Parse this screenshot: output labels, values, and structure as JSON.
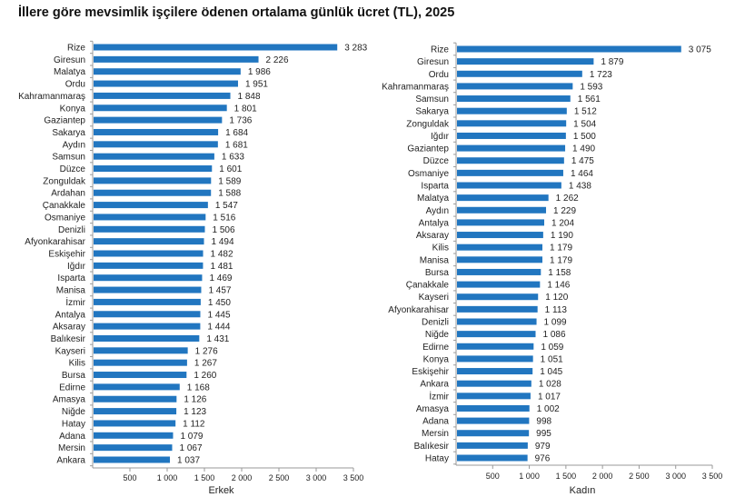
{
  "title": "İllere göre mevsimlik işçilere ödenen ortalama günlük ücret (TL), 2025",
  "chart_data": [
    {
      "type": "bar",
      "orientation": "horizontal",
      "xlabel": "Erkek",
      "xlim": [
        0,
        3500
      ],
      "xticks": [
        500,
        1000,
        1500,
        2000,
        2500,
        3000,
        3500
      ],
      "xtick_labels": [
        "500",
        "1 000",
        "1 500",
        "2 000",
        "2 500",
        "3 000",
        "3 500"
      ],
      "bar_color": "#2176c0",
      "grid": false,
      "categories": [
        "Rize",
        "Giresun",
        "Malatya",
        "Ordu",
        "Kahramanmaraş",
        "Konya",
        "Gaziantep",
        "Sakarya",
        "Aydın",
        "Samsun",
        "Düzce",
        "Zonguldak",
        "Ardahan",
        "Çanakkale",
        "Osmaniye",
        "Denizli",
        "Afyonkarahisar",
        "Eskişehir",
        "Iğdır",
        "Isparta",
        "Manisa",
        "İzmir",
        "Antalya",
        "Aksaray",
        "Balıkesir",
        "Kayseri",
        "Kilis",
        "Bursa",
        "Edirne",
        "Amasya",
        "Niğde",
        "Hatay",
        "Adana",
        "Mersin",
        "Ankara"
      ],
      "values": [
        3283,
        2226,
        1986,
        1951,
        1848,
        1801,
        1736,
        1684,
        1681,
        1633,
        1601,
        1589,
        1588,
        1547,
        1516,
        1506,
        1494,
        1482,
        1481,
        1469,
        1457,
        1450,
        1445,
        1444,
        1431,
        1276,
        1267,
        1260,
        1168,
        1126,
        1123,
        1112,
        1079,
        1067,
        1037
      ],
      "value_labels": [
        "3 283",
        "2 226",
        "1 986",
        "1 951",
        "1 848",
        "1 801",
        "1 736",
        "1 684",
        "1 681",
        "1 633",
        "1 601",
        "1 589",
        "1 588",
        "1 547",
        "1 516",
        "1 506",
        "1 494",
        "1 482",
        "1 481",
        "1 469",
        "1 457",
        "1 450",
        "1 445",
        "1 444",
        "1 431",
        "1 276",
        "1 267",
        "1 260",
        "1 168",
        "1 126",
        "1 123",
        "1 112",
        "1 079",
        "1 067",
        "1 037"
      ]
    },
    {
      "type": "bar",
      "orientation": "horizontal",
      "xlabel": "Kadın",
      "xlim": [
        0,
        3500
      ],
      "xticks": [
        500,
        1000,
        1500,
        2000,
        2500,
        3000,
        3500
      ],
      "xtick_labels": [
        "500",
        "1 000",
        "1 500",
        "2 000",
        "2 500",
        "3 000",
        "3 500"
      ],
      "bar_color": "#2176c0",
      "grid": false,
      "categories": [
        "Rize",
        "Giresun",
        "Ordu",
        "Kahramanmaraş",
        "Samsun",
        "Sakarya",
        "Zonguldak",
        "Iğdır",
        "Gaziantep",
        "Düzce",
        "Osmaniye",
        "Isparta",
        "Malatya",
        "Aydın",
        "Antalya",
        "Aksaray",
        "Kilis",
        "Manisa",
        "Bursa",
        "Çanakkale",
        "Kayseri",
        "Afyonkarahisar",
        "Denizli",
        "Niğde",
        "Edirne",
        "Konya",
        "Eskişehir",
        "Ankara",
        "İzmir",
        "Amasya",
        "Adana",
        "Mersin",
        "Balıkesir",
        "Hatay"
      ],
      "values": [
        3075,
        1879,
        1723,
        1593,
        1561,
        1512,
        1504,
        1500,
        1490,
        1475,
        1464,
        1438,
        1262,
        1229,
        1204,
        1190,
        1179,
        1179,
        1158,
        1146,
        1120,
        1113,
        1099,
        1086,
        1059,
        1051,
        1045,
        1028,
        1017,
        1002,
        998,
        995,
        979,
        976
      ],
      "value_labels": [
        "3 075",
        "1 879",
        "1 723",
        "1 593",
        "1 561",
        "1 512",
        "1 504",
        "1 500",
        "1 490",
        "1 475",
        "1 464",
        "1 438",
        "1 262",
        "1 229",
        "1 204",
        "1 190",
        "1 179",
        "1 179",
        "1 158",
        "1 146",
        "1 120",
        "1 113",
        "1 099",
        "1 086",
        "1 059",
        "1 051",
        "1 045",
        "1 028",
        "1 017",
        "1 002",
        "998",
        "995",
        "979",
        "976"
      ]
    }
  ]
}
